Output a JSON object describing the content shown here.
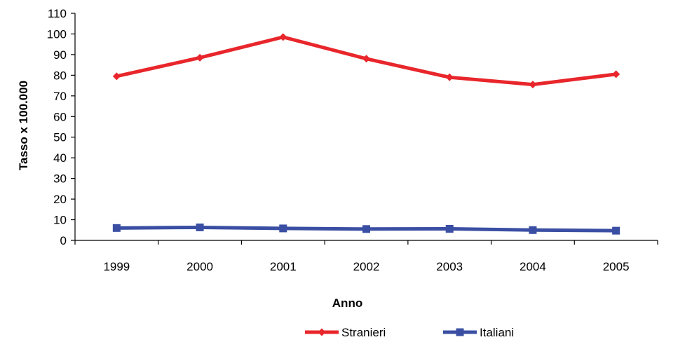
{
  "chart_data": {
    "type": "line",
    "title": "",
    "xlabel": "Anno",
    "ylabel": "Tasso x 100.000",
    "categories": [
      "1999",
      "2000",
      "2001",
      "2002",
      "2003",
      "2004",
      "2005"
    ],
    "ylim": [
      0,
      110
    ],
    "yticks": [
      "0",
      "10",
      "20",
      "30",
      "40",
      "50",
      "60",
      "70",
      "80",
      "90",
      "100",
      "110"
    ],
    "grid": false,
    "legend_position": "bottom",
    "series": [
      {
        "name": "Stranieri",
        "color": "#e8262b",
        "marker": "diamond",
        "values": [
          79.5,
          88.5,
          98.5,
          88,
          79,
          75.5,
          80.5
        ]
      },
      {
        "name": "Italiani",
        "color": "#3a4fa3",
        "marker": "square",
        "values": [
          6,
          6.3,
          5.8,
          5.5,
          5.6,
          5,
          4.7
        ]
      }
    ]
  }
}
